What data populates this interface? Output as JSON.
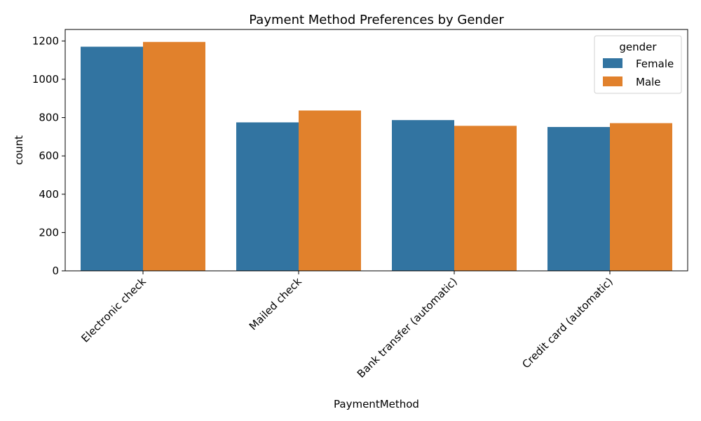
{
  "chart_data": {
    "type": "bar",
    "title": "Payment Method Preferences by Gender",
    "xlabel": "PaymentMethod",
    "ylabel": "count",
    "categories": [
      "Electronic check",
      "Mailed check",
      "Bank transfer (automatic)",
      "Credit card (automatic)"
    ],
    "series": [
      {
        "name": "Female",
        "color": "#3274a1",
        "values": [
          1170,
          775,
          787,
          751
        ]
      },
      {
        "name": "Male",
        "color": "#e1812c",
        "values": [
          1195,
          837,
          757,
          771
        ]
      }
    ],
    "ylim": [
      0,
      1260
    ],
    "yticks": [
      "0",
      "200",
      "400",
      "600",
      "800",
      "1000",
      "1200"
    ],
    "grid": false,
    "legend": {
      "title": "gender",
      "position": "top-right"
    }
  }
}
